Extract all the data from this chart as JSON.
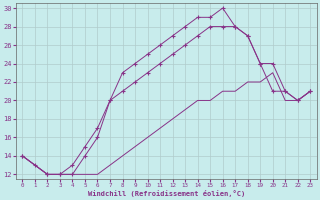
{
  "xlabel": "Windchill (Refroidissement éolien,°C)",
  "bg_color": "#c8ecec",
  "grid_color": "#b0cccc",
  "line_color": "#883388",
  "xlim": [
    -0.5,
    23.5
  ],
  "ylim": [
    11.5,
    30.5
  ],
  "xticks": [
    0,
    1,
    2,
    3,
    4,
    5,
    6,
    7,
    8,
    9,
    10,
    11,
    12,
    13,
    14,
    15,
    16,
    17,
    18,
    19,
    20,
    21,
    22,
    23
  ],
  "yticks": [
    12,
    14,
    16,
    18,
    20,
    22,
    24,
    26,
    28,
    30
  ],
  "line1_x": [
    0,
    1,
    2,
    3,
    4,
    5,
    6,
    7,
    8,
    9,
    10,
    11,
    12,
    13,
    14,
    15,
    16,
    17,
    18,
    19,
    20,
    21,
    22,
    23
  ],
  "line1_y": [
    14,
    13,
    12,
    12,
    12,
    14,
    16,
    20,
    23,
    24,
    25,
    26,
    27,
    28,
    29,
    29,
    30,
    28,
    27,
    24,
    21,
    21,
    20,
    21
  ],
  "line2_x": [
    0,
    2,
    3,
    4,
    5,
    6,
    7,
    8,
    9,
    10,
    11,
    12,
    13,
    14,
    15,
    16,
    17,
    18,
    19,
    20,
    21,
    22,
    23
  ],
  "line2_y": [
    14,
    12,
    12,
    13,
    15,
    17,
    20,
    21,
    22,
    23,
    24,
    25,
    26,
    27,
    28,
    28,
    28,
    27,
    24,
    24,
    21,
    20,
    21
  ],
  "line3_x": [
    0,
    1,
    2,
    3,
    4,
    5,
    6,
    7,
    8,
    9,
    10,
    11,
    12,
    13,
    14,
    15,
    16,
    17,
    18,
    19,
    20,
    21,
    22,
    23
  ],
  "line3_y": [
    14,
    13,
    12,
    12,
    12,
    12,
    12,
    13,
    14,
    15,
    16,
    17,
    18,
    19,
    20,
    20,
    21,
    21,
    22,
    22,
    23,
    20,
    20,
    21
  ]
}
